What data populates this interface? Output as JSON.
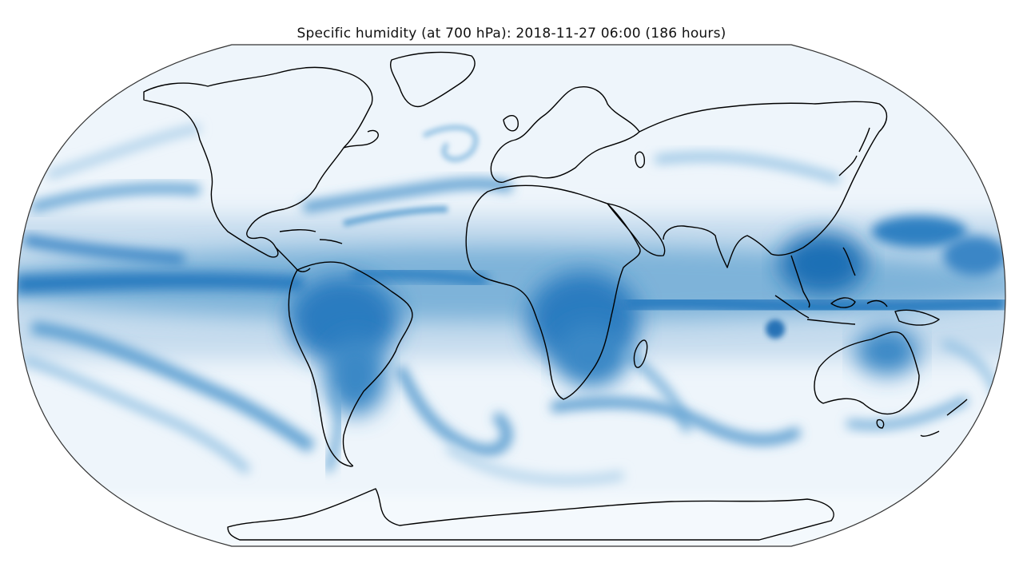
{
  "figure": {
    "title": "Specific humidity (at 700 hPa): 2018-11-27 06:00 (186 hours)"
  },
  "map": {
    "projection": "robinson",
    "variable": "specific humidity",
    "pressure_level": "700 hPa",
    "valid_time": "2018-11-27 06:00",
    "lead_time": "186 hours",
    "colormap": "Blues",
    "colors": {
      "low": "#f4f9fd",
      "mid": "#9ecae1",
      "high": "#1c6bb0",
      "max": "#08519c",
      "coastline": "#000000",
      "frame": "#333333"
    }
  }
}
